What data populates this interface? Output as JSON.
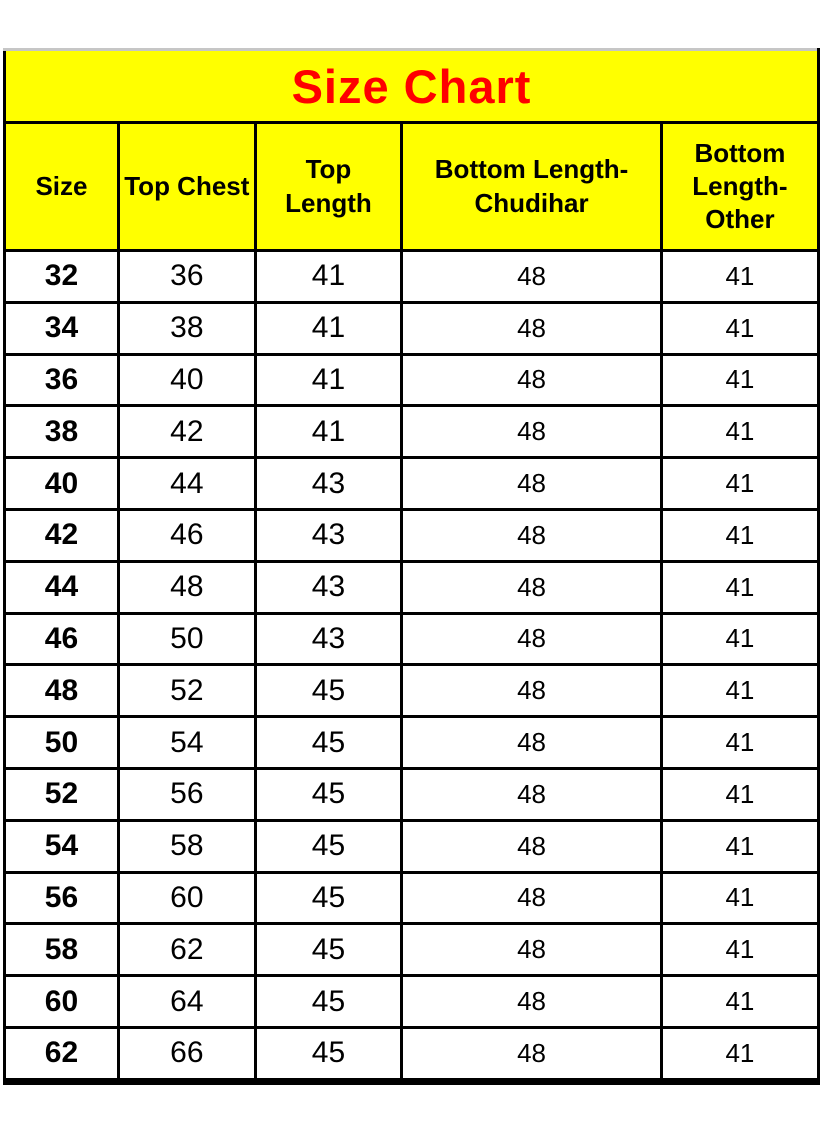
{
  "title": "Size Chart",
  "colors": {
    "header_bg": "#ffff00",
    "title_text": "#fe0000",
    "body_text": "#000000",
    "border": "#000000",
    "top_border": "#c6c6c6",
    "page_bg": "#ffffff"
  },
  "chart_data": {
    "type": "table",
    "title": "Size Chart",
    "columns": [
      "Size",
      "Top Chest",
      "Top Length",
      "Bottom Length-Chudihar",
      "Bottom Length-Other"
    ],
    "rows": [
      [
        "32",
        "36",
        "41",
        "48",
        "41"
      ],
      [
        "34",
        "38",
        "41",
        "48",
        "41"
      ],
      [
        "36",
        "40",
        "41",
        "48",
        "41"
      ],
      [
        "38",
        "42",
        "41",
        "48",
        "41"
      ],
      [
        "40",
        "44",
        "43",
        "48",
        "41"
      ],
      [
        "42",
        "46",
        "43",
        "48",
        "41"
      ],
      [
        "44",
        "48",
        "43",
        "48",
        "41"
      ],
      [
        "46",
        "50",
        "43",
        "48",
        "41"
      ],
      [
        "48",
        "52",
        "45",
        "48",
        "41"
      ],
      [
        "50",
        "54",
        "45",
        "48",
        "41"
      ],
      [
        "52",
        "56",
        "45",
        "48",
        "41"
      ],
      [
        "54",
        "58",
        "45",
        "48",
        "41"
      ],
      [
        "56",
        "60",
        "45",
        "48",
        "41"
      ],
      [
        "58",
        "62",
        "45",
        "48",
        "41"
      ],
      [
        "60",
        "64",
        "45",
        "48",
        "41"
      ],
      [
        "62",
        "66",
        "45",
        "48",
        "41"
      ]
    ]
  }
}
